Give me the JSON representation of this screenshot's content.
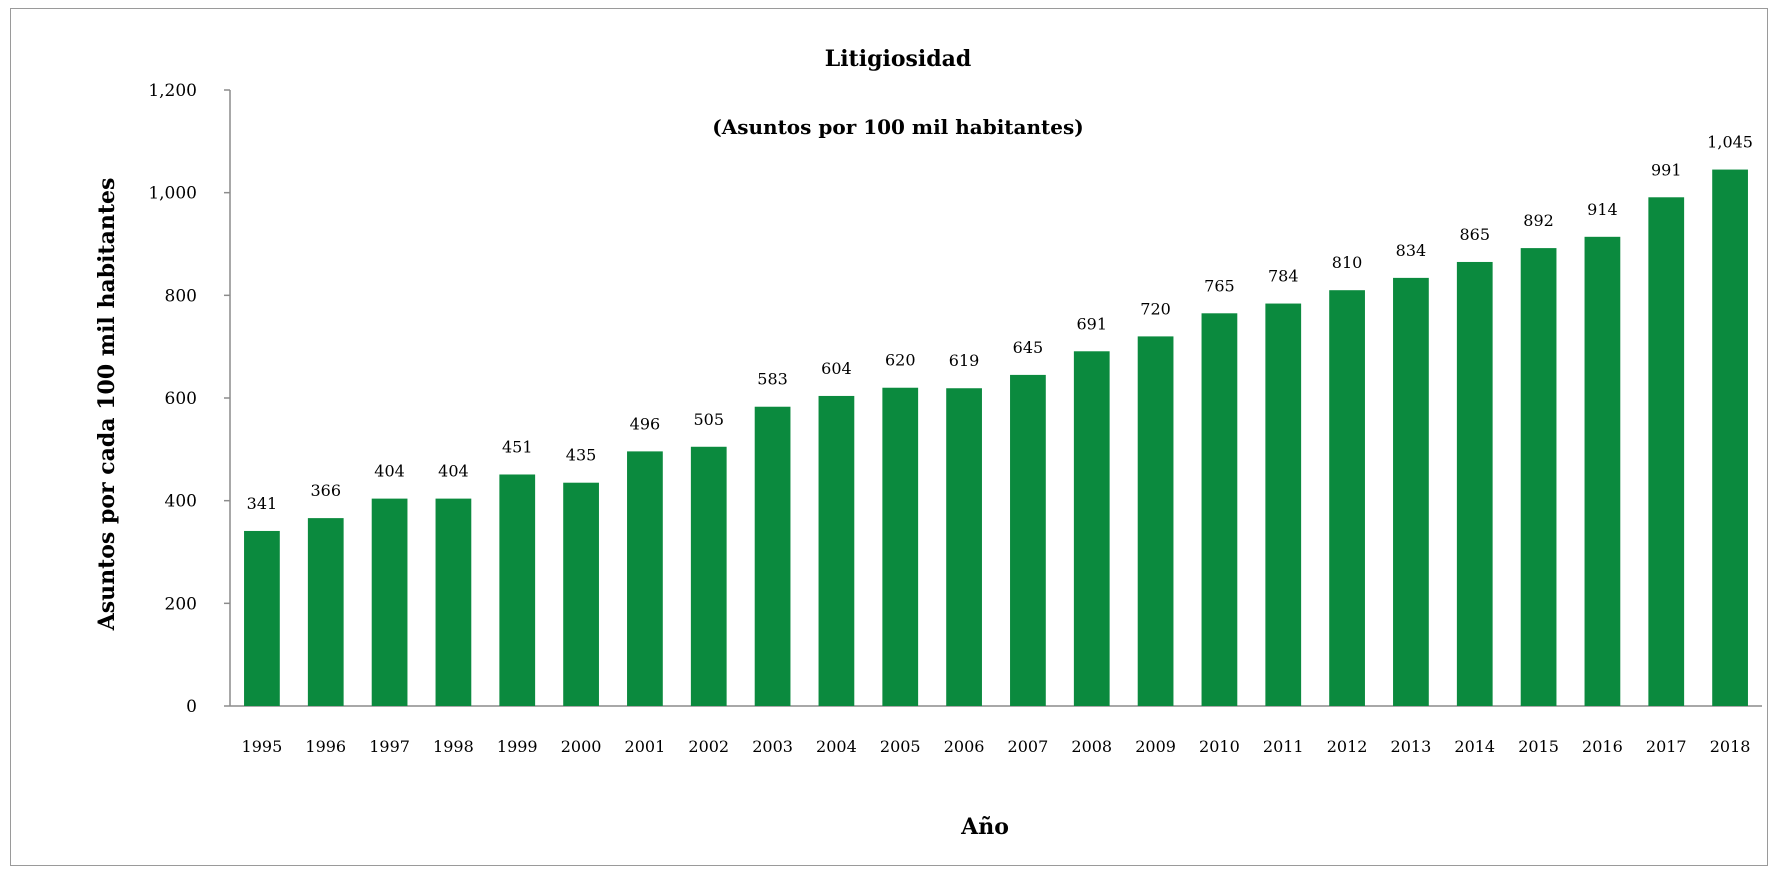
{
  "chart_data": {
    "type": "bar",
    "title": "Litigiosidad",
    "subtitle": "(Asuntos por 100 mil habitantes)",
    "xlabel": "Año",
    "ylabel": "Asuntos por cada 100 mil habitantes",
    "ylim": [
      0,
      1200
    ],
    "yticks": [
      0,
      200,
      400,
      600,
      800,
      1000,
      1200
    ],
    "ytick_labels": [
      "0",
      "200",
      "400",
      "600",
      "800",
      "1,000",
      "1,200"
    ],
    "categories": [
      "1995",
      "1996",
      "1997",
      "1998",
      "1999",
      "2000",
      "2001",
      "2002",
      "2003",
      "2004",
      "2005",
      "2006",
      "2007",
      "2008",
      "2009",
      "2010",
      "2011",
      "2012",
      "2013",
      "2014",
      "2015",
      "2016",
      "2017",
      "2018"
    ],
    "values": [
      341,
      366,
      404,
      404,
      451,
      435,
      496,
      505,
      583,
      604,
      620,
      619,
      645,
      691,
      720,
      765,
      784,
      810,
      834,
      865,
      892,
      914,
      991,
      1045
    ],
    "value_labels": [
      "341",
      "366",
      "404",
      "404",
      "451",
      "435",
      "496",
      "505",
      "583",
      "604",
      "620",
      "619",
      "645",
      "691",
      "720",
      "765",
      "784",
      "810",
      "834",
      "865",
      "892",
      "914",
      "991",
      "1,045"
    ],
    "bar_color": "#0b8a3e",
    "grid": false,
    "legend": "none"
  }
}
